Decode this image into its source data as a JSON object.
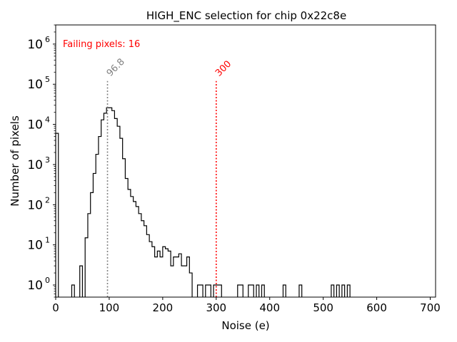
{
  "chart_data": {
    "type": "histogram-step",
    "title": "HIGH_ENC selection for chip 0x22c8e",
    "xlabel": "Noise (e)",
    "ylabel": "Number of pixels",
    "xlim": [
      0,
      710
    ],
    "ylim": [
      0.5,
      3000000
    ],
    "yscale": "log",
    "x_ticks": [
      0,
      100,
      200,
      300,
      400,
      500,
      600,
      700
    ],
    "x_tick_labels": [
      "0",
      "100",
      "200",
      "300",
      "400",
      "500",
      "600",
      "700"
    ],
    "y_ticks": [
      1,
      10,
      100,
      1000,
      10000,
      100000,
      1000000
    ],
    "y_tick_labels": [
      "10",
      "10",
      "10",
      "10",
      "10",
      "10",
      "10"
    ],
    "y_tick_exponents": [
      "0",
      "1",
      "2",
      "3",
      "4",
      "5",
      "6"
    ],
    "bin_width": 5,
    "series": [
      {
        "name": "noise histogram",
        "color": "#000000",
        "bins": [
          [
            0,
            6000
          ],
          [
            30,
            1
          ],
          [
            45,
            3
          ],
          [
            55,
            15
          ],
          [
            60,
            60
          ],
          [
            65,
            200
          ],
          [
            70,
            600
          ],
          [
            75,
            1800
          ],
          [
            80,
            5000
          ],
          [
            85,
            13000
          ],
          [
            90,
            19000
          ],
          [
            95,
            26000
          ],
          [
            100,
            26000
          ],
          [
            105,
            22000
          ],
          [
            110,
            14000
          ],
          [
            115,
            9000
          ],
          [
            120,
            4500
          ],
          [
            125,
            1400
          ],
          [
            130,
            450
          ],
          [
            135,
            240
          ],
          [
            140,
            160
          ],
          [
            145,
            120
          ],
          [
            150,
            90
          ],
          [
            155,
            60
          ],
          [
            160,
            40
          ],
          [
            165,
            30
          ],
          [
            170,
            18
          ],
          [
            175,
            12
          ],
          [
            180,
            9
          ],
          [
            185,
            5
          ],
          [
            190,
            7
          ],
          [
            195,
            5
          ],
          [
            200,
            9
          ],
          [
            205,
            8
          ],
          [
            210,
            7
          ],
          [
            215,
            3
          ],
          [
            220,
            5
          ],
          [
            225,
            5
          ],
          [
            230,
            6
          ],
          [
            235,
            3
          ],
          [
            240,
            3
          ],
          [
            245,
            5
          ],
          [
            250,
            2
          ],
          [
            265,
            1
          ],
          [
            270,
            1
          ],
          [
            280,
            1
          ],
          [
            285,
            1
          ],
          [
            295,
            1
          ],
          [
            300,
            1
          ],
          [
            305,
            1
          ],
          [
            340,
            1
          ],
          [
            345,
            1
          ],
          [
            360,
            1
          ],
          [
            365,
            1
          ],
          [
            375,
            1
          ],
          [
            385,
            1
          ],
          [
            425,
            1
          ],
          [
            455,
            1
          ],
          [
            515,
            1
          ],
          [
            525,
            1
          ],
          [
            535,
            1
          ],
          [
            545,
            1
          ]
        ]
      }
    ],
    "vlines": [
      {
        "x": 96.8,
        "label": "96.8",
        "color": "#808080",
        "top": 120000
      },
      {
        "x": 300,
        "label": "300",
        "color": "#ff0000",
        "top": 120000
      }
    ],
    "annotation": {
      "text": "Failing pixels: 16",
      "color": "#ff0000"
    }
  }
}
